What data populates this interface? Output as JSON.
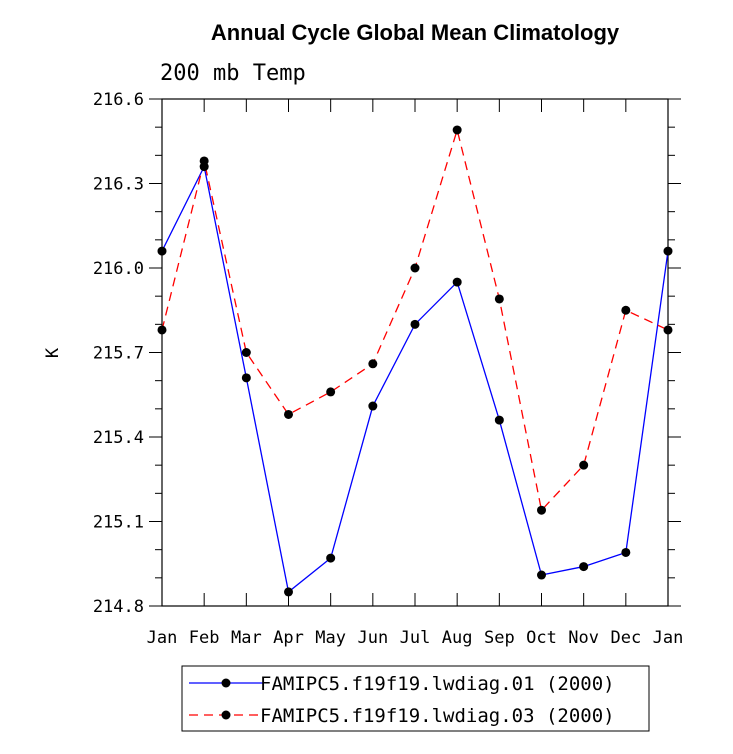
{
  "chart_data": {
    "type": "line",
    "title": "Annual Cycle Global Mean Climatology",
    "subtitle": "200 mb Temp",
    "xlabel": "",
    "ylabel": "K",
    "categories": [
      "Jan",
      "Feb",
      "Mar",
      "Apr",
      "May",
      "Jun",
      "Jul",
      "Aug",
      "Sep",
      "Oct",
      "Nov",
      "Dec",
      "Jan"
    ],
    "ylim": [
      214.8,
      216.6
    ],
    "yticks": [
      "214.8",
      "215.1",
      "215.4",
      "215.7",
      "216.0",
      "216.3",
      "216.6"
    ],
    "grid": false,
    "legend_position": "bottom-center",
    "series": [
      {
        "name": "FAMIPC5.f19f19.lwdiag.01 (2000)",
        "color": "#0000ff",
        "style": "solid",
        "marker": "filled-circle",
        "values": [
          216.06,
          216.36,
          215.61,
          214.85,
          214.97,
          215.51,
          215.8,
          215.95,
          215.46,
          214.91,
          214.94,
          214.99,
          216.06
        ]
      },
      {
        "name": "FAMIPC5.f19f19.lwdiag.03 (2000)",
        "color": "#ff0000",
        "style": "dashed",
        "marker": "filled-circle",
        "values": [
          215.78,
          216.38,
          215.7,
          215.48,
          215.56,
          215.66,
          216.0,
          216.49,
          215.89,
          215.14,
          215.3,
          215.85,
          215.78
        ]
      }
    ]
  }
}
